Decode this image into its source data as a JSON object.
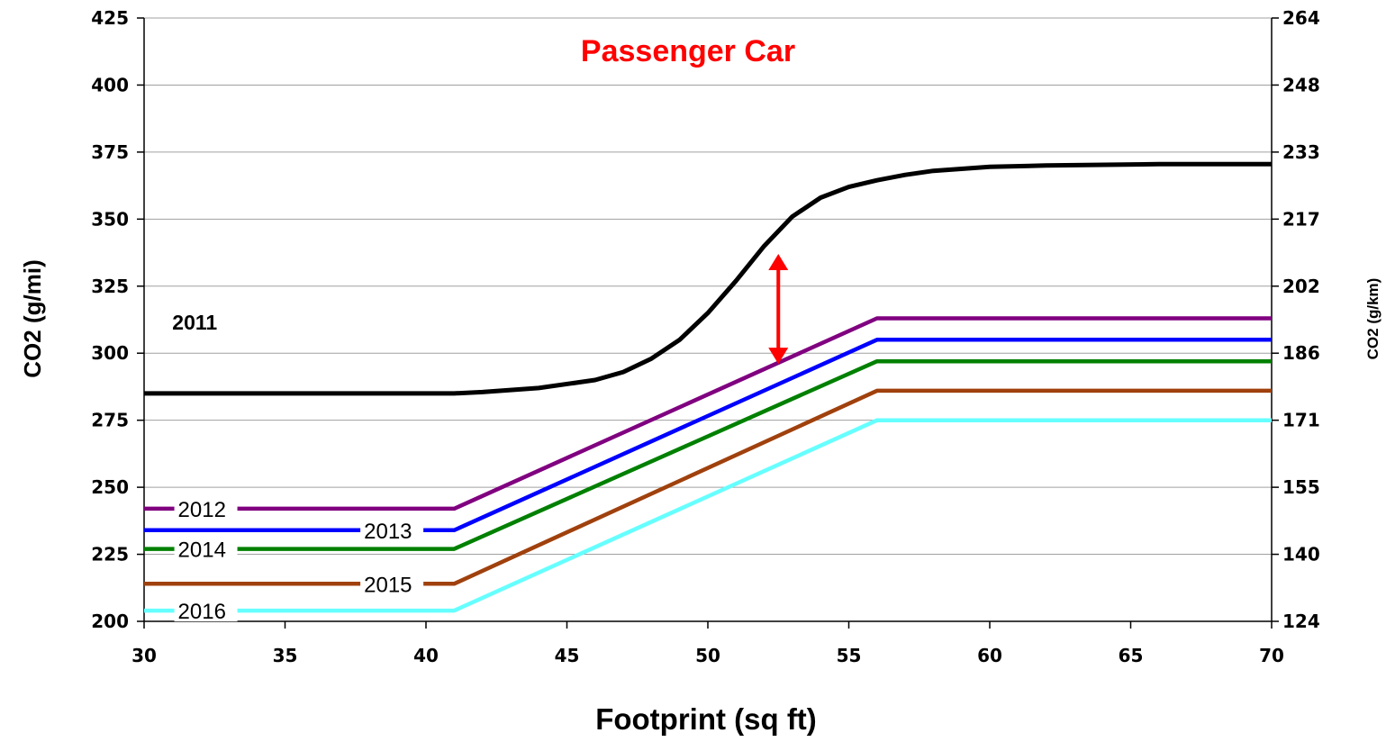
{
  "chart_data": {
    "type": "line",
    "title": "Passenger Car",
    "xlabel": "Footprint (sq ft)",
    "ylabel": "CO2 (g/mi)",
    "y2label": "CO2 (g/km)",
    "xlim": [
      30,
      70
    ],
    "ylim": [
      200,
      425
    ],
    "x_ticks": [
      30,
      35,
      40,
      45,
      50,
      55,
      60,
      65,
      70
    ],
    "y_ticks": [
      200,
      225,
      250,
      275,
      300,
      325,
      350,
      375,
      400,
      425
    ],
    "y2_ticks": [
      124,
      140,
      155,
      171,
      186,
      202,
      217,
      233,
      248,
      264
    ],
    "grid": true,
    "series": [
      {
        "name": "2011",
        "color": "#000000",
        "x": [
          30,
          41,
          42,
          44,
          46,
          47,
          48,
          49,
          50,
          51,
          52,
          53,
          54,
          55,
          56,
          57,
          58,
          60,
          62,
          66,
          70
        ],
        "y": [
          285,
          285,
          285.5,
          287,
          290,
          293,
          298,
          305,
          315,
          327,
          340,
          351,
          358,
          362,
          364.5,
          366.5,
          368,
          369.5,
          370,
          370.5,
          370.5
        ]
      },
      {
        "name": "2012",
        "color": "#800080",
        "x": [
          30,
          41,
          56,
          70
        ],
        "y": [
          242,
          242,
          313,
          313
        ]
      },
      {
        "name": "2013",
        "color": "#0000ff",
        "x": [
          30,
          41,
          56,
          70
        ],
        "y": [
          234,
          234,
          305,
          305
        ]
      },
      {
        "name": "2014",
        "color": "#008000",
        "x": [
          30,
          41,
          56,
          70
        ],
        "y": [
          227,
          227,
          297,
          297
        ]
      },
      {
        "name": "2015",
        "color": "#a0410d",
        "x": [
          30,
          41,
          56,
          70
        ],
        "y": [
          214,
          214,
          286,
          286
        ]
      },
      {
        "name": "2016",
        "color": "#66ffff",
        "x": [
          30,
          41,
          56,
          70
        ],
        "y": [
          204,
          204,
          275,
          275
        ]
      }
    ],
    "annotations": [
      {
        "type": "double-arrow",
        "color": "#ff0000",
        "x": 52.5,
        "y_from": 296,
        "y_to": 337
      }
    ]
  }
}
